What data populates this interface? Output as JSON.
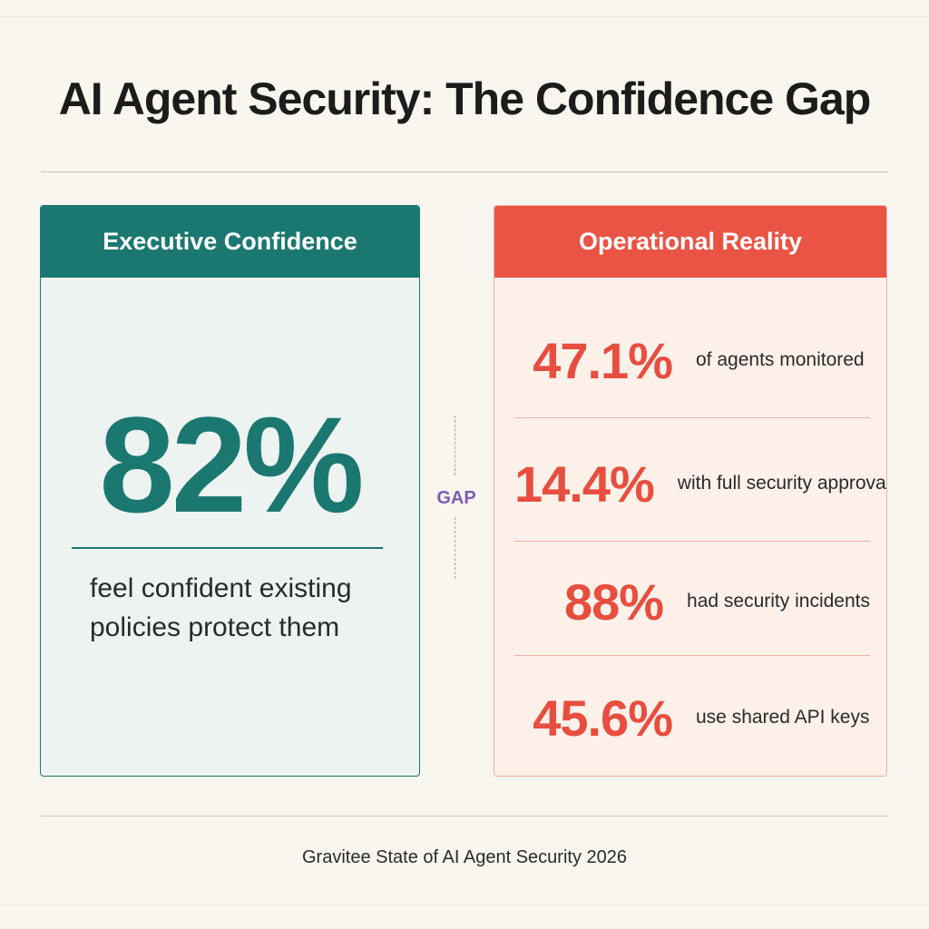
{
  "title": "AI Agent Security: The Confidence Gap",
  "left_panel": {
    "header": "Executive Confidence",
    "stat": "82%",
    "description_line1": "feel confident existing",
    "description_line2": "policies protect them"
  },
  "gap_label": "GAP",
  "right_panel": {
    "header": "Operational Reality",
    "stats": [
      {
        "value": "47.1%",
        "label": "of agents monitored"
      },
      {
        "value": "14.4%",
        "label": "with full security approval"
      },
      {
        "value": "88%",
        "label": "had security incidents"
      },
      {
        "value": "45.6%",
        "label": "use shared API keys"
      }
    ]
  },
  "source": "Gravitee State of AI Agent Security 2026",
  "colors": {
    "background": "#f9f6ef",
    "teal": "#1b7870",
    "coral": "#ea5444",
    "gap_purple": "#7e5db0"
  }
}
